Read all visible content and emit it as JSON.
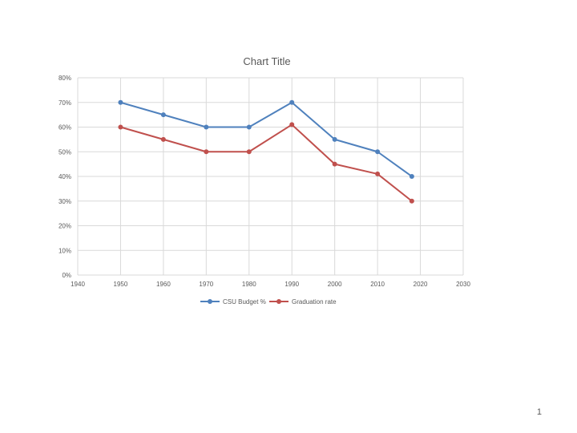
{
  "chart_data": {
    "type": "line",
    "title": "Chart Title",
    "x": [
      1950,
      1960,
      1970,
      1980,
      1990,
      2000,
      2010,
      2018
    ],
    "series": [
      {
        "name": "CSU Budget %",
        "color": "#4f81bd",
        "values": [
          70,
          65,
          60,
          60,
          70,
          55,
          50,
          40
        ]
      },
      {
        "name": "Graduation rate",
        "color": "#c0504d",
        "values": [
          60,
          55,
          50,
          50,
          61,
          45,
          41,
          30
        ]
      }
    ],
    "xlim": [
      1940,
      2030
    ],
    "ylim": [
      0,
      80
    ],
    "x_ticks": [
      "1940",
      "1950",
      "1960",
      "1970",
      "1980",
      "1990",
      "2000",
      "2010",
      "2020",
      "2030"
    ],
    "y_ticks": [
      "0%",
      "10%",
      "20%",
      "30%",
      "40%",
      "50%",
      "60%",
      "70%",
      "80%"
    ],
    "grid": true,
    "legend": "bottom"
  },
  "page": {
    "number": "1"
  }
}
